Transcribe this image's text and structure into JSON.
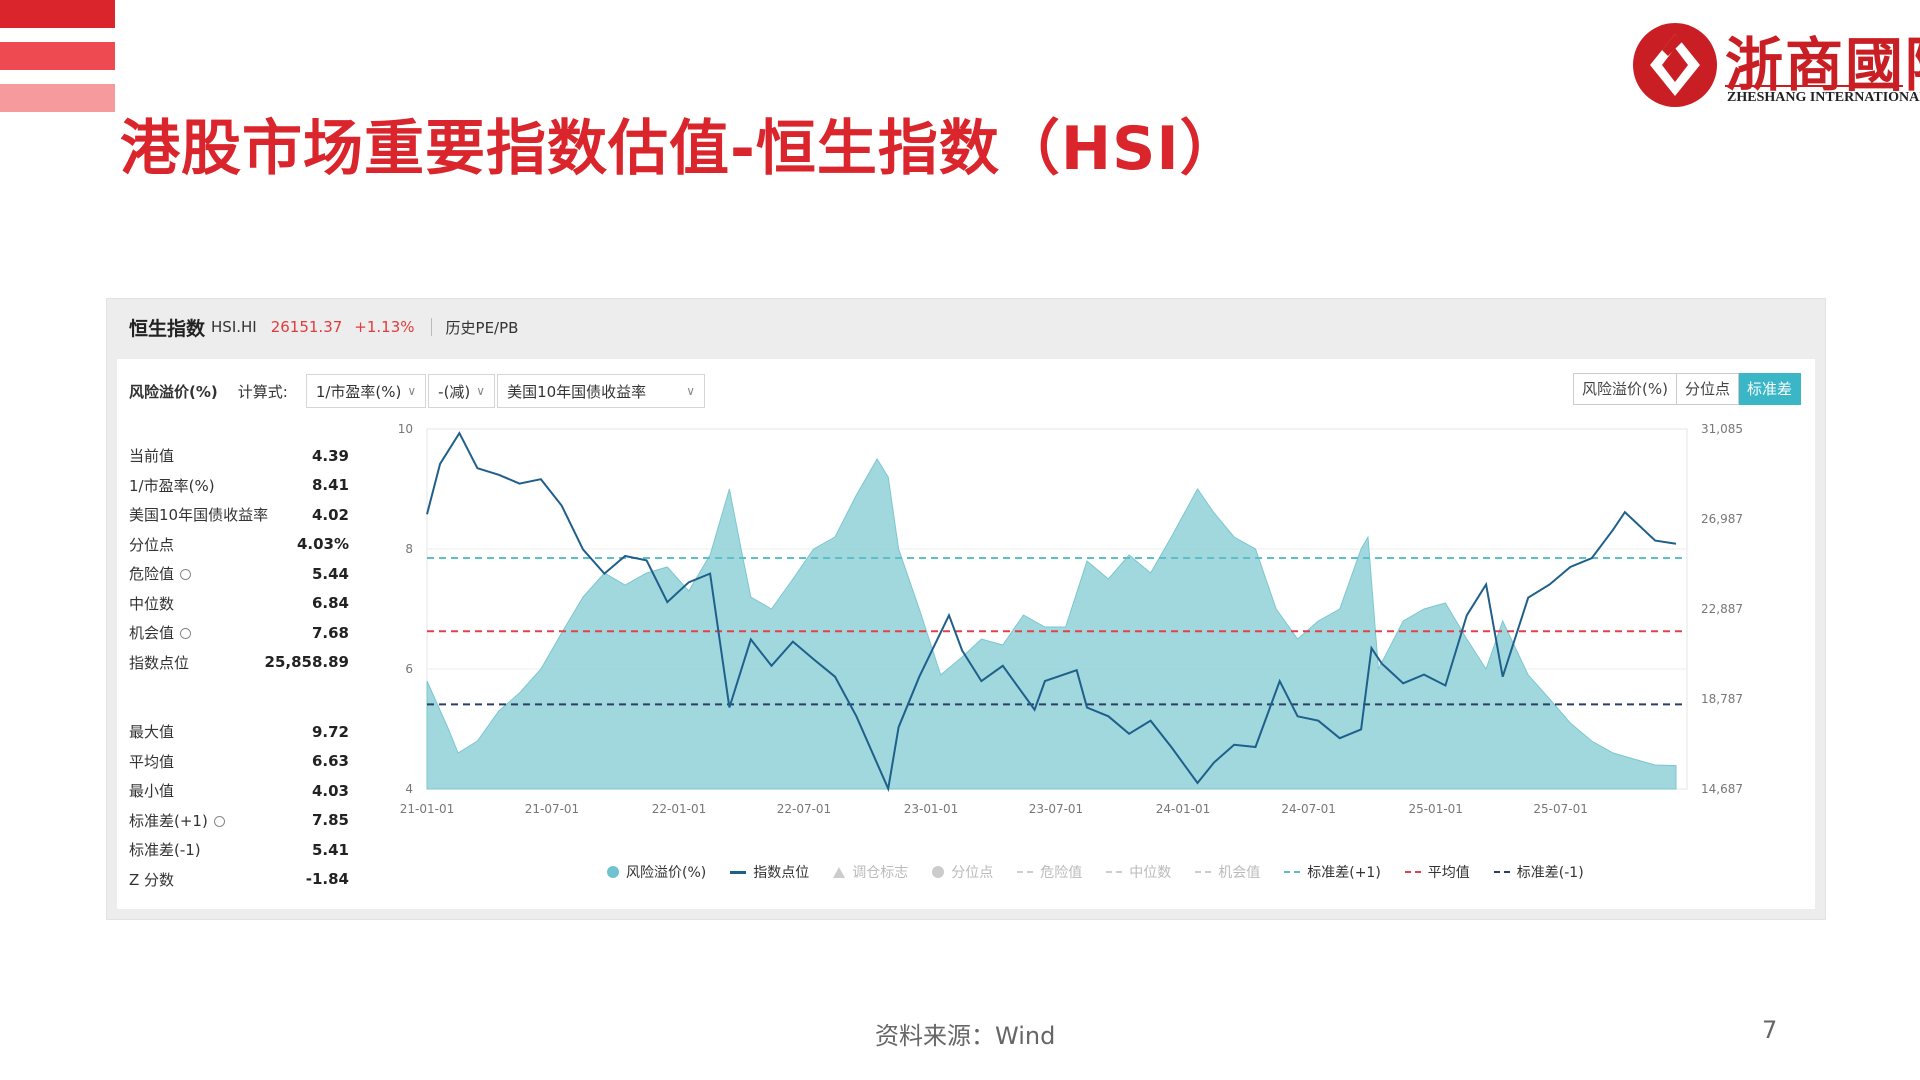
{
  "slide": {
    "title": "港股市场重要指数估值-恒生指数（HSI）",
    "source": "资料来源：Wind",
    "page_number": "7",
    "accent_color": "#d9252b"
  },
  "logo": {
    "cn": "浙商國際",
    "en": "ZHESHANG INTERNATIONAL"
  },
  "panel": {
    "index_name": "恒生指数",
    "code": "HSI.HI",
    "price": "26151.37",
    "change": "+1.13%",
    "link": "历史PE/PB"
  },
  "controls": {
    "label": "风险溢价(%)",
    "formula_label": "计算式:",
    "dropdowns": [
      "1/市盈率(%)",
      "-(减)",
      "美国10年国债收益率"
    ],
    "toggle": [
      "风险溢价(%)",
      "分位点",
      "标准差"
    ],
    "toggle_active": "标准差"
  },
  "stats_top": [
    {
      "label": "当前值",
      "value": "4.39"
    },
    {
      "label": "1/市盈率(%)",
      "value": "8.41"
    },
    {
      "label": "美国10年国债收益率",
      "value": "4.02"
    },
    {
      "label": "分位点",
      "value": "4.03%"
    },
    {
      "label": "危险值",
      "value": "5.44",
      "gear": true
    },
    {
      "label": "中位数",
      "value": "6.84"
    },
    {
      "label": "机会值",
      "value": "7.68",
      "gear": true
    },
    {
      "label": "指数点位",
      "value": "25,858.89"
    }
  ],
  "stats_bottom": [
    {
      "label": "最大值",
      "value": "9.72"
    },
    {
      "label": "平均值",
      "value": "6.63"
    },
    {
      "label": "最小值",
      "value": "4.03"
    },
    {
      "label": "标准差(+1)",
      "value": "7.85",
      "gear": true
    },
    {
      "label": "标准差(-1)",
      "value": "5.41"
    },
    {
      "label": "Z 分数",
      "value": "-1.84"
    }
  ],
  "legend": [
    {
      "label": "风险溢价(%)",
      "kind": "dot",
      "color": "#6fc3cf",
      "active": true
    },
    {
      "label": "指数点位",
      "kind": "line",
      "color": "#1f5f8b",
      "active": true
    },
    {
      "label": "调仓标志",
      "kind": "triangle",
      "color": "#cccccc",
      "active": false
    },
    {
      "label": "分位点",
      "kind": "dot",
      "color": "#cccccc",
      "active": false
    },
    {
      "label": "危险值",
      "kind": "dash",
      "color": "#cccccc",
      "active": false
    },
    {
      "label": "中位数",
      "kind": "dash",
      "color": "#cccccc",
      "active": false
    },
    {
      "label": "机会值",
      "kind": "dash",
      "color": "#cccccc",
      "active": false
    },
    {
      "label": "标准差(+1)",
      "kind": "dash",
      "color": "#5fbfc9",
      "active": true
    },
    {
      "label": "平均值",
      "kind": "dash",
      "color": "#e0424d",
      "active": true
    },
    {
      "label": "标准差(-1)",
      "kind": "dash",
      "color": "#2c3e66",
      "active": true
    }
  ],
  "chart_data": {
    "type": "area",
    "x_ticks": [
      "21-01-01",
      "21-07-01",
      "22-01-01",
      "22-07-01",
      "23-01-01",
      "23-07-01",
      "24-01-01",
      "24-07-01",
      "25-01-01",
      "25-07-01"
    ],
    "y_left": {
      "min": 4,
      "max": 10,
      "ticks": [
        4,
        6,
        8,
        10
      ]
    },
    "y_right": {
      "min": 14687,
      "max": 31085,
      "ticks": [
        "14,687",
        "18,787",
        "22,887",
        "26,987",
        "31,085"
      ]
    },
    "ref_lines": {
      "std_plus1": 7.85,
      "mean": 6.63,
      "std_minus1": 5.41
    },
    "series": [
      {
        "name": "风险溢价(%)",
        "axis": "left",
        "points": [
          [
            "2021-01-01",
            5.8
          ],
          [
            "2021-02-01",
            5.0
          ],
          [
            "2021-02-15",
            4.6
          ],
          [
            "2021-03-15",
            4.8
          ],
          [
            "2021-04-15",
            5.3
          ],
          [
            "2021-05-15",
            5.6
          ],
          [
            "2021-06-15",
            6.0
          ],
          [
            "2021-07-15",
            6.6
          ],
          [
            "2021-08-15",
            7.2
          ],
          [
            "2021-09-15",
            7.6
          ],
          [
            "2021-10-15",
            7.4
          ],
          [
            "2021-11-15",
            7.6
          ],
          [
            "2021-12-15",
            7.7
          ],
          [
            "2022-01-15",
            7.3
          ],
          [
            "2022-02-15",
            7.9
          ],
          [
            "2022-03-15",
            9.0
          ],
          [
            "2022-04-01",
            8.0
          ],
          [
            "2022-04-15",
            7.2
          ],
          [
            "2022-05-15",
            7.0
          ],
          [
            "2022-06-15",
            7.5
          ],
          [
            "2022-07-15",
            8.0
          ],
          [
            "2022-08-15",
            8.2
          ],
          [
            "2022-09-15",
            8.9
          ],
          [
            "2022-10-15",
            9.5
          ],
          [
            "2022-10-31",
            9.2
          ],
          [
            "2022-11-15",
            8.0
          ],
          [
            "2022-12-15",
            7.0
          ],
          [
            "2023-01-15",
            5.9
          ],
          [
            "2023-02-15",
            6.2
          ],
          [
            "2023-03-15",
            6.5
          ],
          [
            "2023-04-15",
            6.4
          ],
          [
            "2023-05-15",
            6.9
          ],
          [
            "2023-06-15",
            6.7
          ],
          [
            "2023-07-15",
            6.7
          ],
          [
            "2023-08-15",
            7.8
          ],
          [
            "2023-09-15",
            7.5
          ],
          [
            "2023-10-15",
            7.9
          ],
          [
            "2023-11-15",
            7.6
          ],
          [
            "2023-12-15",
            8.2
          ],
          [
            "2024-01-22",
            9.0
          ],
          [
            "2024-02-15",
            8.6
          ],
          [
            "2024-03-15",
            8.2
          ],
          [
            "2024-04-15",
            8.0
          ],
          [
            "2024-05-15",
            7.0
          ],
          [
            "2024-06-15",
            6.5
          ],
          [
            "2024-07-15",
            6.8
          ],
          [
            "2024-08-15",
            7.0
          ],
          [
            "2024-09-15",
            8.0
          ],
          [
            "2024-09-25",
            8.2
          ],
          [
            "2024-10-10",
            6.0
          ],
          [
            "2024-11-15",
            6.8
          ],
          [
            "2024-12-15",
            7.0
          ],
          [
            "2025-01-15",
            7.1
          ],
          [
            "2025-02-15",
            6.5
          ],
          [
            "2025-03-15",
            6.0
          ],
          [
            "2025-04-08",
            6.8
          ],
          [
            "2025-05-15",
            5.9
          ],
          [
            "2025-06-15",
            5.5
          ],
          [
            "2025-07-15",
            5.1
          ],
          [
            "2025-08-15",
            4.8
          ],
          [
            "2025-09-15",
            4.6
          ],
          [
            "2025-10-15",
            4.5
          ],
          [
            "2025-11-15",
            4.4
          ],
          [
            "2025-12-15",
            4.39
          ]
        ]
      },
      {
        "name": "指数点位",
        "axis": "right",
        "points": [
          [
            "2021-01-01",
            27200
          ],
          [
            "2021-01-20",
            29500
          ],
          [
            "2021-02-17",
            30900
          ],
          [
            "2021-03-15",
            29300
          ],
          [
            "2021-04-15",
            29000
          ],
          [
            "2021-05-15",
            28600
          ],
          [
            "2021-06-15",
            28800
          ],
          [
            "2021-07-15",
            27600
          ],
          [
            "2021-08-15",
            25600
          ],
          [
            "2021-09-15",
            24500
          ],
          [
            "2021-10-15",
            25300
          ],
          [
            "2021-11-15",
            25100
          ],
          [
            "2021-12-15",
            23200
          ],
          [
            "2022-01-15",
            24100
          ],
          [
            "2022-02-15",
            24500
          ],
          [
            "2022-03-15",
            18400
          ],
          [
            "2022-04-15",
            21500
          ],
          [
            "2022-05-15",
            20300
          ],
          [
            "2022-06-15",
            21400
          ],
          [
            "2022-07-15",
            20600
          ],
          [
            "2022-08-15",
            19800
          ],
          [
            "2022-09-15",
            18000
          ],
          [
            "2022-10-31",
            14700
          ],
          [
            "2022-11-15",
            17500
          ],
          [
            "2022-12-15",
            19800
          ],
          [
            "2023-01-27",
            22600
          ],
          [
            "2023-02-15",
            21000
          ],
          [
            "2023-03-15",
            19600
          ],
          [
            "2023-04-15",
            20300
          ],
          [
            "2023-05-31",
            18300
          ],
          [
            "2023-06-15",
            19600
          ],
          [
            "2023-07-31",
            20100
          ],
          [
            "2023-08-15",
            18400
          ],
          [
            "2023-09-15",
            18000
          ],
          [
            "2023-10-15",
            17200
          ],
          [
            "2023-11-15",
            17800
          ],
          [
            "2023-12-15",
            16600
          ],
          [
            "2024-01-22",
            14961
          ],
          [
            "2024-02-15",
            15900
          ],
          [
            "2024-03-15",
            16700
          ],
          [
            "2024-04-15",
            16600
          ],
          [
            "2024-05-20",
            19600
          ],
          [
            "2024-06-15",
            18000
          ],
          [
            "2024-07-15",
            17800
          ],
          [
            "2024-08-15",
            17000
          ],
          [
            "2024-09-15",
            17400
          ],
          [
            "2024-09-30",
            21100
          ],
          [
            "2024-10-15",
            20400
          ],
          [
            "2024-11-15",
            19500
          ],
          [
            "2024-12-15",
            19900
          ],
          [
            "2025-01-15",
            19400
          ],
          [
            "2025-02-15",
            22600
          ],
          [
            "2025-03-15",
            24000
          ],
          [
            "2025-04-08",
            19800
          ],
          [
            "2025-05-15",
            23400
          ],
          [
            "2025-06-15",
            24000
          ],
          [
            "2025-07-15",
            24800
          ],
          [
            "2025-08-15",
            25200
          ],
          [
            "2025-09-15",
            26500
          ],
          [
            "2025-10-02",
            27300
          ],
          [
            "2025-11-15",
            26000
          ],
          [
            "2025-12-15",
            25859
          ]
        ]
      }
    ],
    "grid": true,
    "legend_position": "bottom"
  }
}
